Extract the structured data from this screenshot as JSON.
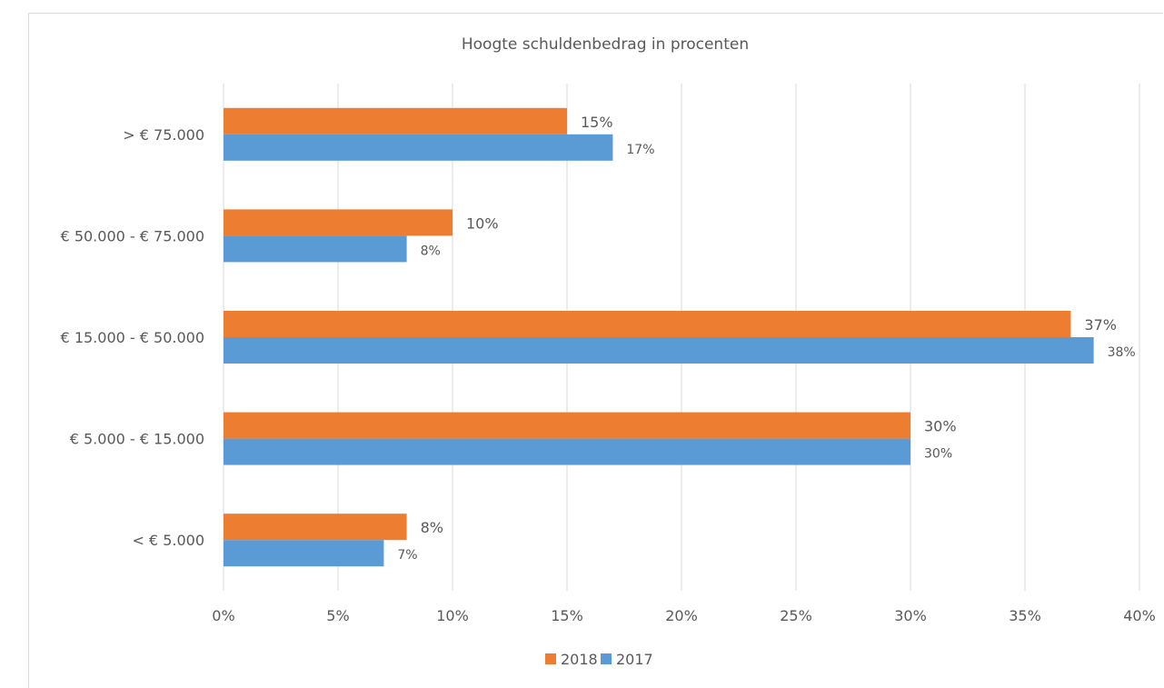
{
  "chart_data": {
    "type": "bar",
    "orientation": "horizontal",
    "title": "Hoogte schuldenbedrag in procenten",
    "categories": [
      "< € 5.000",
      "€ 5.000 - € 15.000",
      "€ 15.000 - € 50.000",
      "€ 50.000 - € 75.000",
      "> € 75.000"
    ],
    "series": [
      {
        "name": "2018",
        "color": "#ed7d31",
        "values": [
          8,
          30,
          37,
          10,
          15
        ],
        "labels": [
          "8%",
          "30%",
          "37%",
          "10%",
          "15%"
        ]
      },
      {
        "name": "2017",
        "color": "#5b9bd5",
        "values": [
          7,
          30,
          38,
          8,
          17
        ],
        "labels": [
          "7%",
          "30%",
          "38%",
          "8%",
          "17%"
        ]
      }
    ],
    "xlim": [
      0,
      40
    ],
    "xticks": [
      0,
      5,
      10,
      15,
      20,
      25,
      30,
      35,
      40
    ],
    "xtick_labels": [
      "0%",
      "5%",
      "10%",
      "15%",
      "20%",
      "25%",
      "30%",
      "35%",
      "40%"
    ],
    "xlabel": "",
    "ylabel": "",
    "grid": "vertical",
    "gridline_color": "#d9d9d9",
    "legend_position": "bottom"
  }
}
